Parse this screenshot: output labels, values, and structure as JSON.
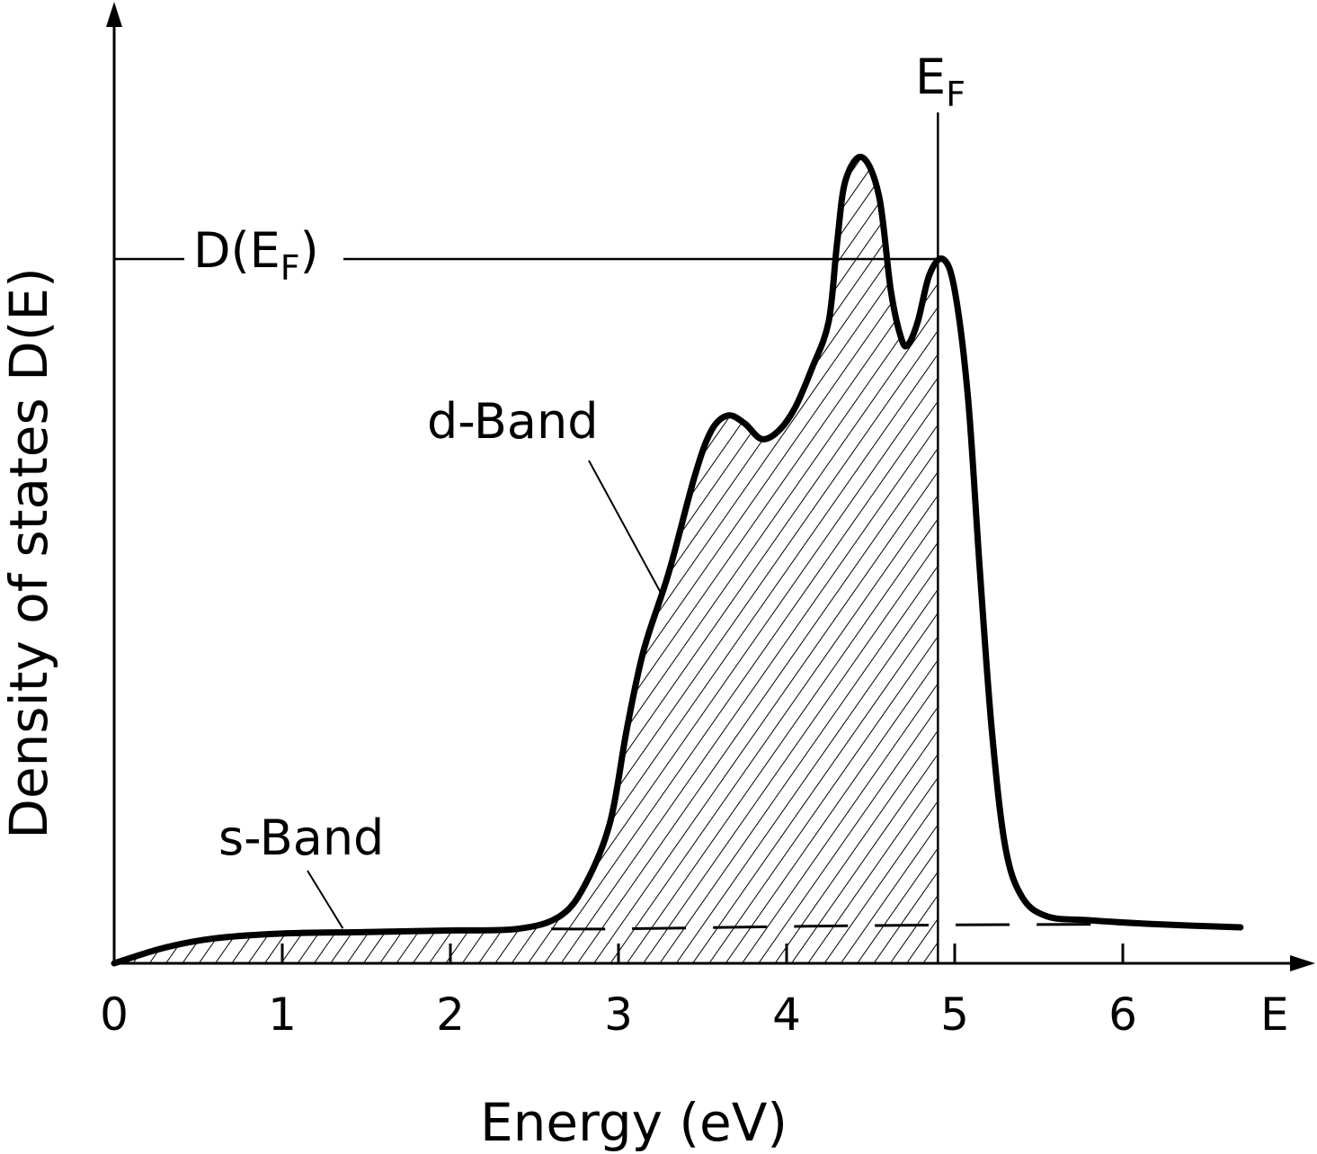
{
  "chart_data": {
    "type": "line",
    "xlabel": "Energy (eV)",
    "ylabel": "Density of states D(E)",
    "x_axis_end_label": "E",
    "x_ticks": [
      "0",
      "1",
      "2",
      "3",
      "4",
      "5",
      "6"
    ],
    "xlim": [
      0,
      7
    ],
    "ylim": [
      0,
      1.0
    ],
    "grid": false,
    "series": [
      {
        "name": "",
        "points": [
          [
            0.0,
            0.0
          ],
          [
            0.3,
            0.02
          ],
          [
            0.6,
            0.032
          ],
          [
            1.0,
            0.038
          ],
          [
            1.5,
            0.04
          ],
          [
            2.0,
            0.042
          ],
          [
            2.4,
            0.044
          ],
          [
            2.65,
            0.06
          ],
          [
            2.8,
            0.1
          ],
          [
            2.95,
            0.18
          ],
          [
            3.05,
            0.3
          ],
          [
            3.15,
            0.4
          ],
          [
            3.3,
            0.5
          ],
          [
            3.45,
            0.62
          ],
          [
            3.55,
            0.68
          ],
          [
            3.65,
            0.7
          ],
          [
            3.75,
            0.69
          ],
          [
            3.85,
            0.67
          ],
          [
            3.95,
            0.68
          ],
          [
            4.05,
            0.71
          ],
          [
            4.15,
            0.76
          ],
          [
            4.25,
            0.82
          ],
          [
            4.3,
            0.92
          ],
          [
            4.35,
            1.0
          ],
          [
            4.45,
            1.03
          ],
          [
            4.55,
            0.98
          ],
          [
            4.62,
            0.86
          ],
          [
            4.68,
            0.8
          ],
          [
            4.72,
            0.79
          ],
          [
            4.78,
            0.82
          ],
          [
            4.85,
            0.88
          ],
          [
            4.93,
            0.9
          ],
          [
            5.0,
            0.86
          ],
          [
            5.08,
            0.72
          ],
          [
            5.15,
            0.5
          ],
          [
            5.22,
            0.3
          ],
          [
            5.3,
            0.15
          ],
          [
            5.4,
            0.085
          ],
          [
            5.55,
            0.06
          ],
          [
            5.8,
            0.055
          ],
          [
            6.2,
            0.05
          ],
          [
            6.7,
            0.046
          ]
        ]
      }
    ],
    "s_band_level": [
      [
        0.0,
        0.0
      ],
      [
        0.5,
        0.032
      ],
      [
        1.0,
        0.038
      ],
      [
        2.0,
        0.042
      ],
      [
        3.0,
        0.044
      ],
      [
        4.0,
        0.047
      ],
      [
        4.9,
        0.049
      ],
      [
        6.0,
        0.05
      ]
    ],
    "fermi_energy": 4.9,
    "fermi_label": "E",
    "fermi_label_sub": "F",
    "dos_at_fermi": 0.9,
    "dos_at_fermi_label": "D(E",
    "dos_at_fermi_label_sub": "F",
    "dos_at_fermi_label_close": ")",
    "annotations": [
      {
        "text": "d-Band",
        "target": [
          3.3,
          0.5
        ]
      },
      {
        "text": "s-Band",
        "target": [
          1.2,
          0.04
        ]
      }
    ],
    "fill": "hatched area under curve from 0 to E_F",
    "line_color": "#000000"
  }
}
